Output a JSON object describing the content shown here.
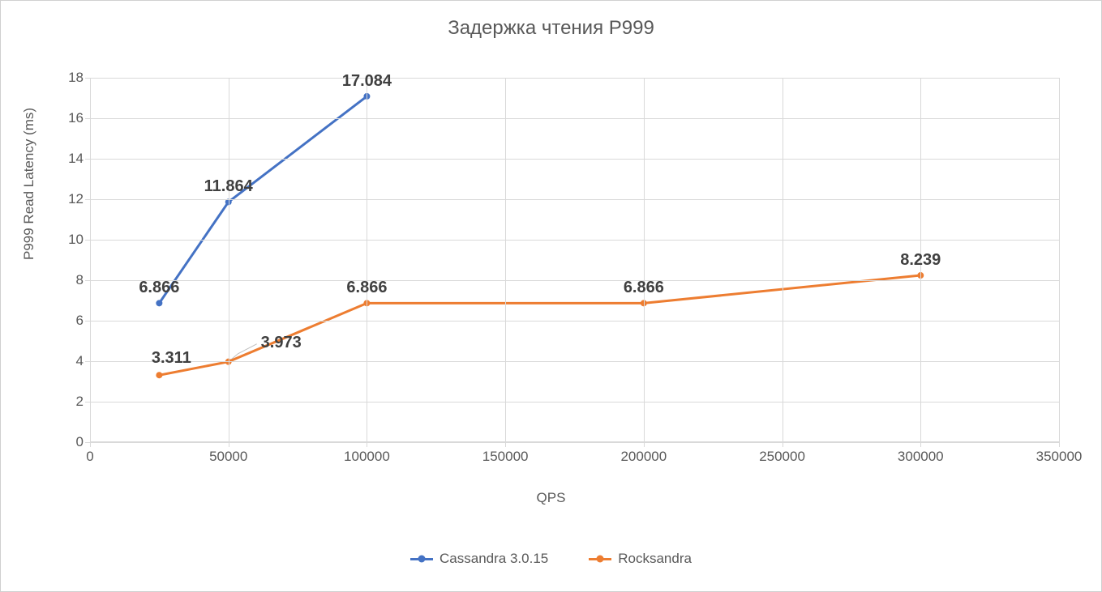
{
  "chart": {
    "type": "line",
    "title": "Задержка чтения P999",
    "xlabel": "QPS",
    "ylabel": "P999 Read Latency  (ms)",
    "background_color": "#ffffff",
    "grid_color": "#d9d9d9",
    "border_color": "#d0d0d0",
    "axis_color": "#d9d9d9",
    "tick_font_color": "#595959",
    "title_fontsize": 24,
    "label_fontsize": 17,
    "tick_fontsize": 17,
    "data_label_fontsize": 20,
    "data_label_color": "#404040",
    "xlim": [
      0,
      350000
    ],
    "ylim": [
      0,
      18
    ],
    "x_tick_step": 50000,
    "y_tick_step": 2,
    "x_ticks": [
      0,
      50000,
      100000,
      150000,
      200000,
      250000,
      300000,
      350000
    ],
    "y_ticks": [
      0,
      2,
      4,
      6,
      8,
      10,
      12,
      14,
      16,
      18
    ],
    "line_width": 3,
    "marker_size": 8,
    "marker_style": "circle",
    "series": [
      {
        "name": "Cassandra 3.0.15",
        "color": "#4472c4",
        "x": [
          25000,
          50000,
          100000
        ],
        "y": [
          6.866,
          11.864,
          17.084
        ],
        "labels": [
          "6.866",
          "11.864",
          "17.084"
        ],
        "label_offset_y": -30
      },
      {
        "name": "Rocksandra",
        "color": "#ed7d31",
        "x": [
          25000,
          50000,
          100000,
          200000,
          300000
        ],
        "y": [
          3.311,
          3.973,
          6.866,
          6.866,
          8.239
        ],
        "labels": [
          "3.311",
          "3.973",
          "6.866",
          "6.866",
          "8.239"
        ],
        "label_offset_y": -30
      }
    ],
    "legend_position": "bottom",
    "callout": {
      "series_index": 1,
      "point_index": 1,
      "color": "#bfbfbf"
    }
  }
}
